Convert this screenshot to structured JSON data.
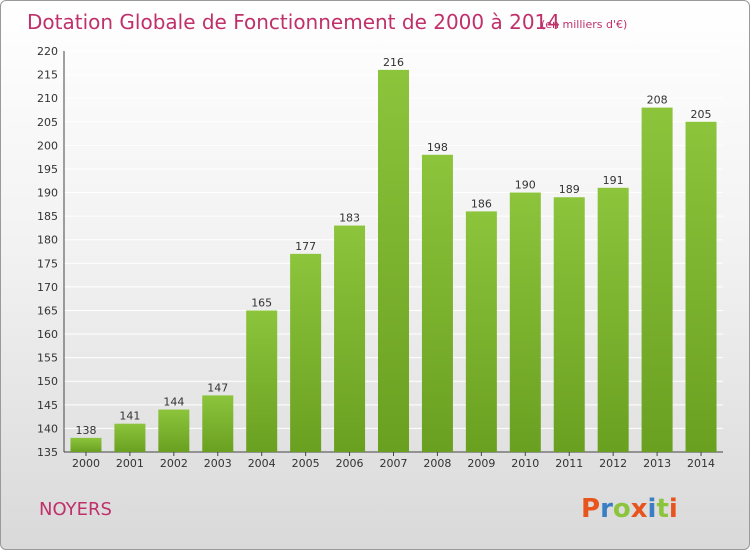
{
  "chart_data": {
    "type": "bar",
    "title": "Dotation Globale de Fonctionnement de 2000 à 2014",
    "subtitle": "(en milliers d'€)",
    "categories": [
      "2000",
      "2001",
      "2002",
      "2003",
      "2004",
      "2005",
      "2006",
      "2007",
      "2008",
      "2009",
      "2010",
      "2011",
      "2012",
      "2013",
      "2014"
    ],
    "values": [
      138,
      141,
      144,
      147,
      165,
      177,
      183,
      216,
      198,
      186,
      190,
      189,
      191,
      208,
      205
    ],
    "ylim": [
      135,
      220
    ],
    "yticks": [
      135,
      140,
      145,
      150,
      155,
      160,
      165,
      170,
      175,
      180,
      185,
      190,
      195,
      200,
      205,
      210,
      215,
      220
    ],
    "grid": true,
    "bar_color": "#8cc43c",
    "bar_color_dark": "#6aa020"
  },
  "footer": {
    "commune": "NOYERS",
    "brand": "Proxiti"
  },
  "colors": {
    "title": "#c0306a",
    "grid": "#ffffff",
    "brand_letters": [
      "#e8541e",
      "#3a7fc4",
      "#8cc43c",
      "#e8541e",
      "#3a7fc4",
      "#8cc43c",
      "#e8541e"
    ]
  }
}
